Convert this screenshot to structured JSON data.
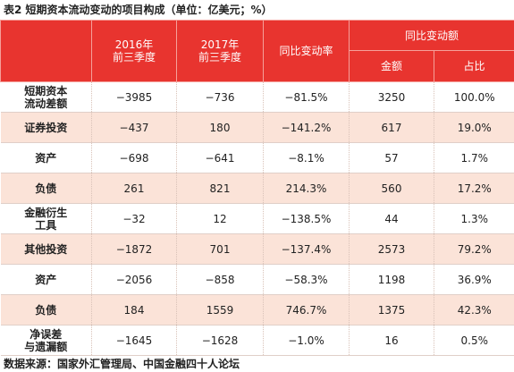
{
  "title": "表2  短期资本流动变动的项目构成（单位：亿美元；%）",
  "table": {
    "header": {
      "col1": "2016年\n前三季度",
      "col2": "2017年\n前三季度",
      "col3": "同比变动率",
      "group": "同比变动额",
      "sub1": "金额",
      "sub2": "占比"
    },
    "rows": [
      [
        "短期资本\n流动差额",
        "−3985",
        "−736",
        "−81.5%",
        "3250",
        "100.0%"
      ],
      [
        "证券投资",
        "−437",
        "180",
        "−141.2%",
        "617",
        "19.0%"
      ],
      [
        "资产",
        "−698",
        "−641",
        "−8.1%",
        "57",
        "1.7%"
      ],
      [
        "负债",
        "261",
        "821",
        "214.3%",
        "560",
        "17.2%"
      ],
      [
        "金融衍生\n工具",
        "−32",
        "12",
        "−138.5%",
        "44",
        "1.3%"
      ],
      [
        "其他投资",
        "−1872",
        "701",
        "−137.4%",
        "2573",
        "79.2%"
      ],
      [
        "资产",
        "−2056",
        "−858",
        "−58.3%",
        "1198",
        "36.9%"
      ],
      [
        "负债",
        "184",
        "1559",
        "746.7%",
        "1375",
        "42.3%"
      ],
      [
        "净误差\n与遗漏额",
        "−1645",
        "−1628",
        "−1.0%",
        "16",
        "0.5%"
      ]
    ]
  },
  "source": "数据来源：国家外汇管理局、中国金融四十人论坛"
}
